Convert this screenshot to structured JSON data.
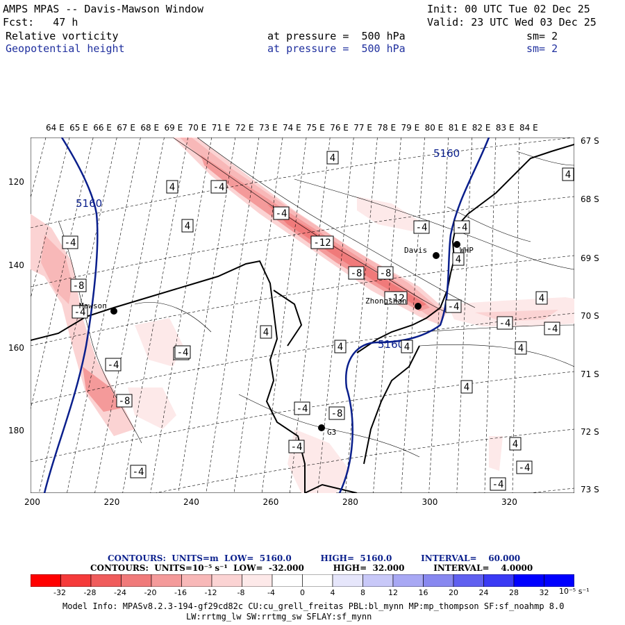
{
  "header": {
    "title": "AMPS MPAS -- Davis-Mawson Window",
    "init": "Init: 00 UTC Tue 02 Dec 25",
    "fcst": "Fcst:   47 h",
    "valid": "Valid: 23 UTC Wed 03 Dec 25",
    "field1": {
      "name": "Relative vorticity",
      "level": "at pressure =  500 hPa",
      "sm": "sm= 2"
    },
    "field2": {
      "name": "Geopotential height",
      "level": "at pressure =  500 hPa",
      "sm": "sm= 2"
    }
  },
  "map": {
    "lon_labels": [
      "64 E",
      "65 E",
      "66 E",
      "67 E",
      "68 E",
      "69 E",
      "70 E",
      "71 E",
      "72 E",
      "73 E",
      "74 E",
      "75 E",
      "76 E",
      "77 E",
      "78 E",
      "79 E",
      "80 E",
      "81 E",
      "82 E",
      "83 E",
      "84 E"
    ],
    "lat_labels": [
      "67 S",
      "68 S",
      "69 S",
      "70 S",
      "71 S",
      "72 S",
      "73 S"
    ],
    "x_ticks": [
      "200",
      "220",
      "240",
      "260",
      "280",
      "300",
      "320"
    ],
    "y_ticks": [
      "120",
      "140",
      "160",
      "180"
    ],
    "stations": [
      {
        "name": "Mawson"
      },
      {
        "name": "Davis"
      },
      {
        "name": "WHP"
      },
      {
        "name": "Zhongshan"
      },
      {
        "name": "G3"
      }
    ],
    "height_labels": [
      "5160",
      "5160",
      "5160"
    ],
    "vort_labels": [
      "4",
      "4",
      "-4",
      "4",
      "-4",
      "-12",
      "-8",
      "-8",
      "-12",
      "-4",
      "-4",
      "4",
      "-4",
      "-8",
      "-4",
      "4",
      "-4",
      "4",
      "4",
      "-4",
      "-8",
      "4",
      "-4",
      "4",
      "4",
      "-4",
      "-4",
      "-8",
      "-4",
      "4",
      "4",
      "-4",
      "4",
      "-4",
      "-4",
      "-4",
      "-4"
    ],
    "colors": {
      "height": "#0a1f8c",
      "coast": "#000000"
    }
  },
  "contours_info": {
    "line1": "CONTOURS:  UNITS=m  LOW=  5160.0          HIGH=  5160.0          INTERVAL=    60.000",
    "line2": "CONTOURS:  UNITS=10⁻⁵ s⁻¹  LOW=  -32.000          HIGH=  32.000          INTERVAL=    4.0000"
  },
  "colorbar": {
    "ticks": [
      "-32",
      "-28",
      "-24",
      "-20",
      "-16",
      "-12",
      "-8",
      "-4",
      "0",
      "4",
      "8",
      "12",
      "16",
      "20",
      "24",
      "28",
      "32"
    ],
    "unit": "10⁻⁵ s⁻¹",
    "colors": [
      "#ff0000",
      "#f53a3a",
      "#f05c5c",
      "#f07a7a",
      "#f49a9a",
      "#f8b8b8",
      "#fbd3d3",
      "#fde9e9",
      "#ffffff",
      "#ffffff",
      "#e6e6fb",
      "#c8c8f8",
      "#a8a8f4",
      "#8888f0",
      "#6060f0",
      "#3a3af4",
      "#0000ff"
    ]
  },
  "footer": {
    "line1": "Model Info: MPASv8.2.3-194-gf29cd82c CU:cu_grell_freitas PBL:bl_mynn MP:mp_thompson SF:sf_noahmp 8.0",
    "line2": "LW:rrtmg_lw SW:rrtmg_sw SFLAY:sf_mynn"
  }
}
